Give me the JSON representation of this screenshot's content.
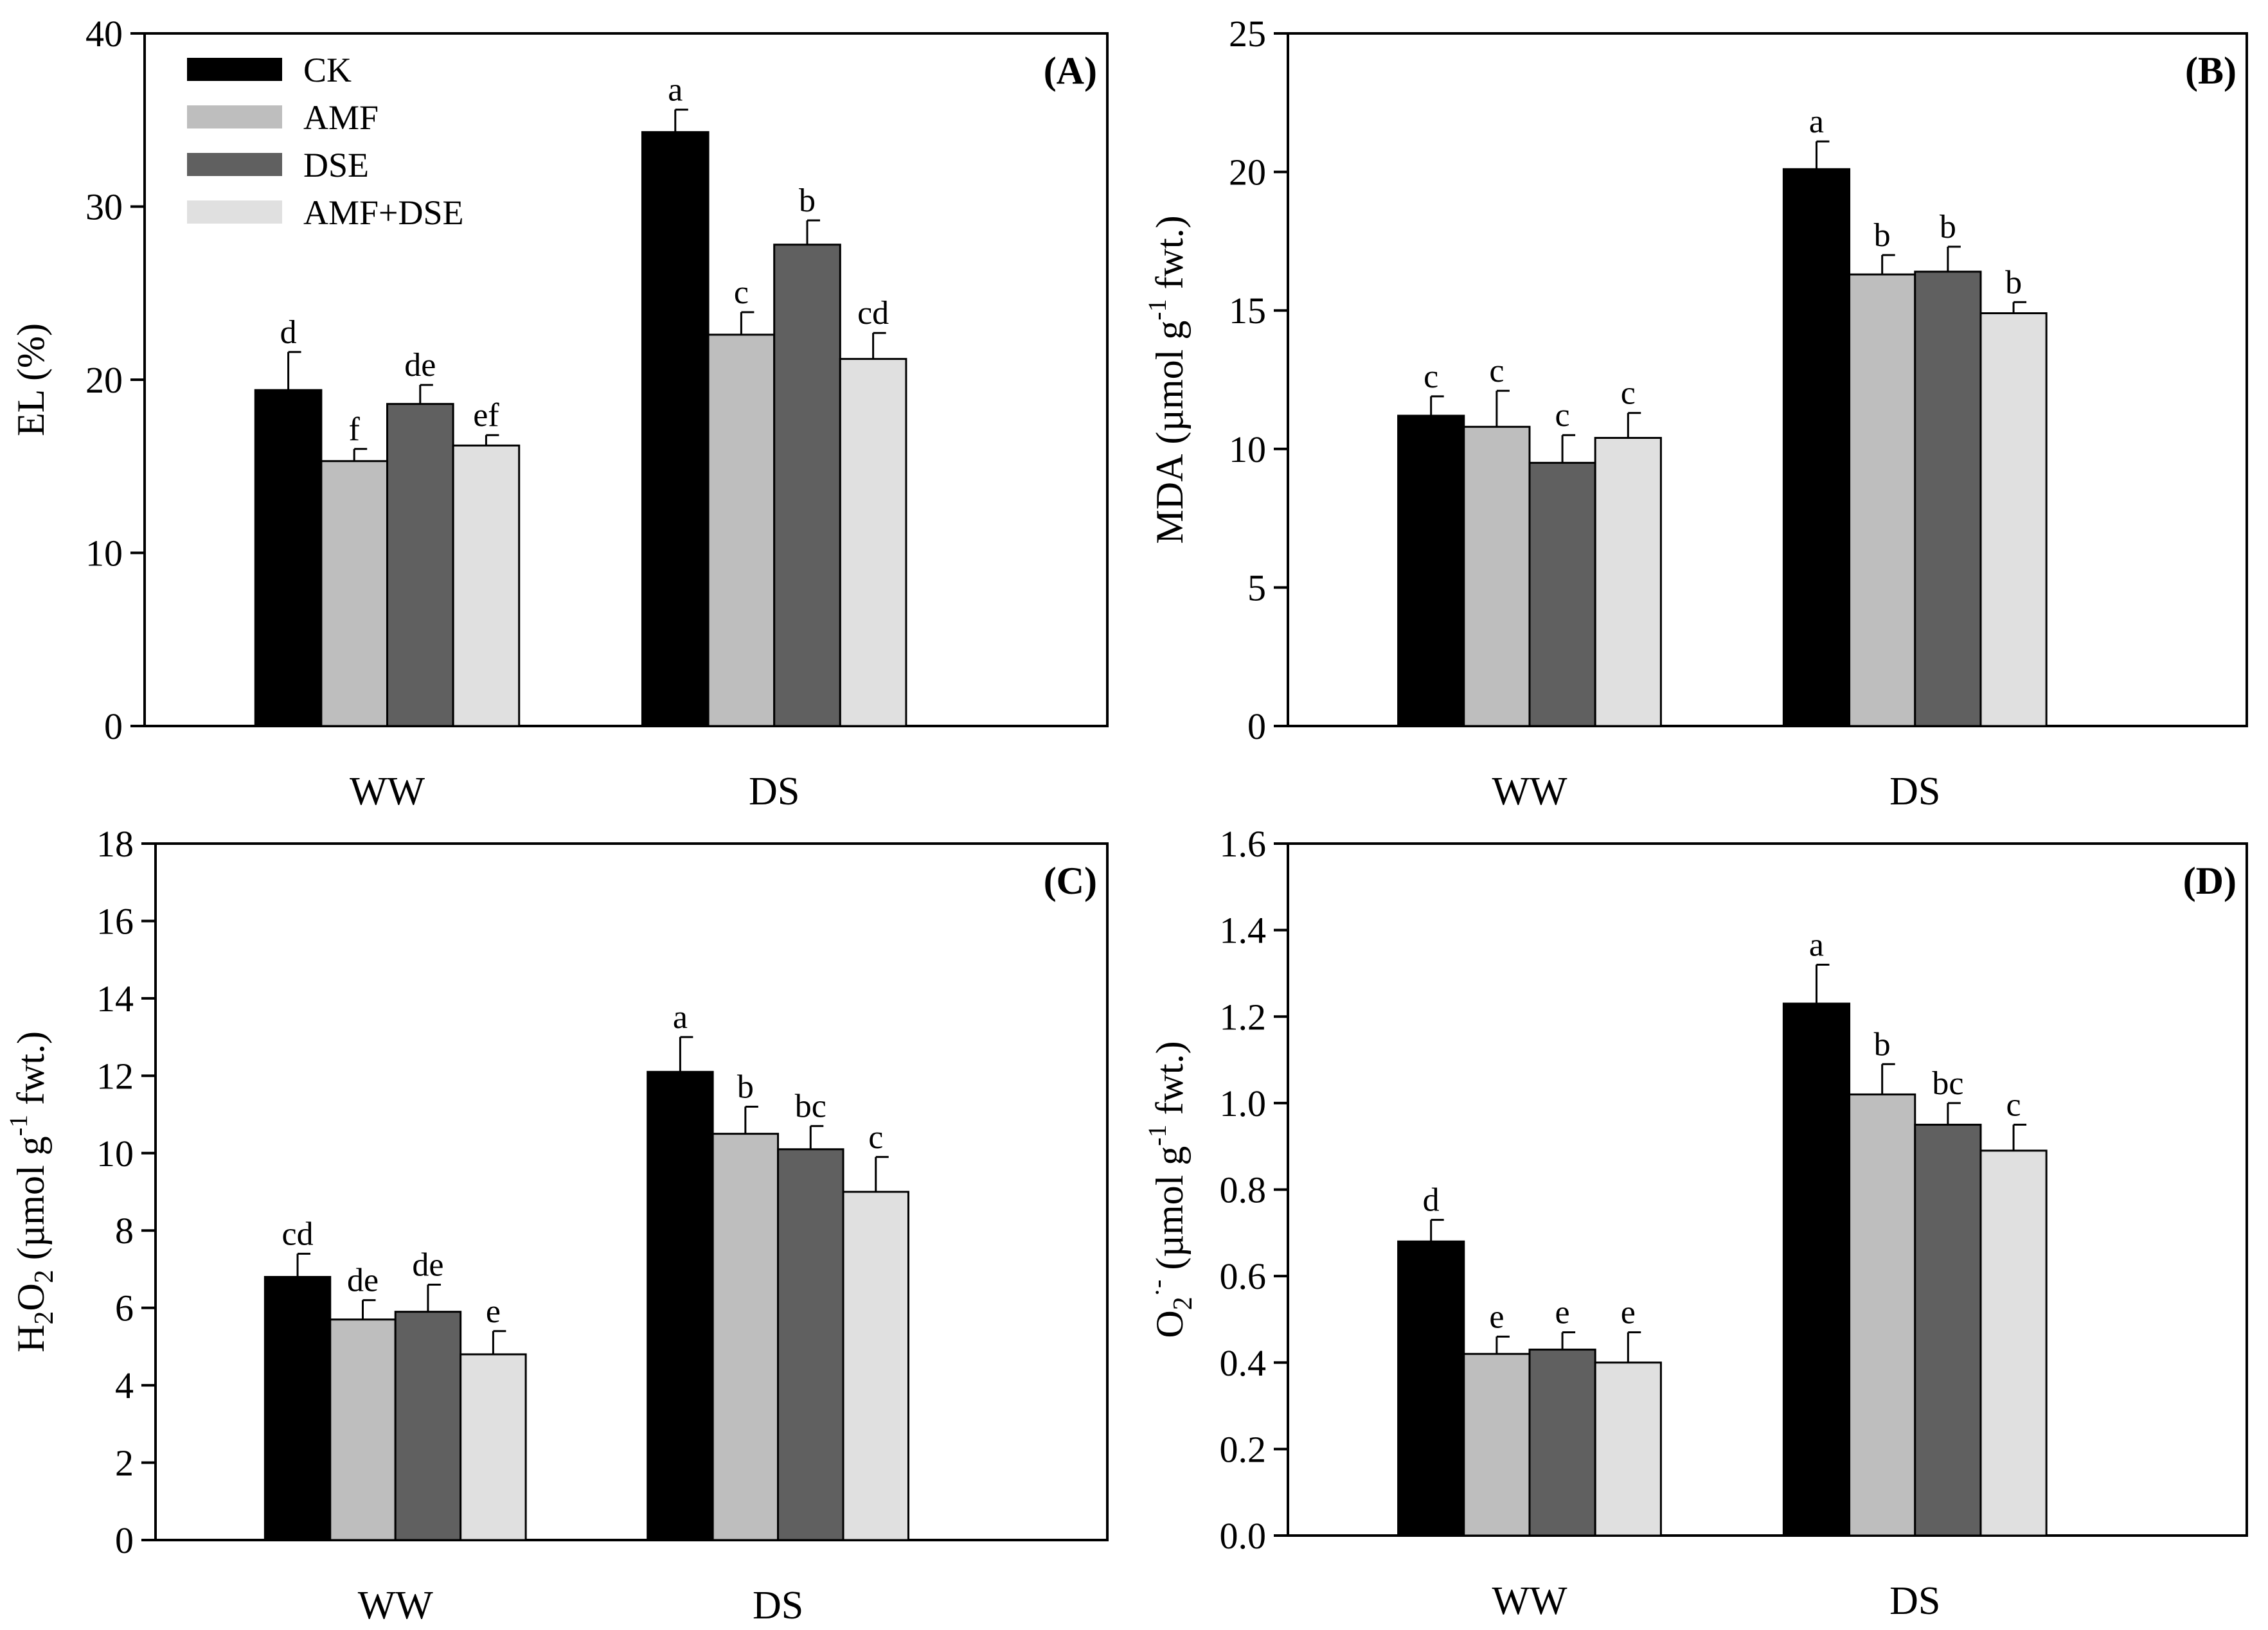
{
  "colors": {
    "CK": "#000000",
    "AMF": "#bebebe",
    "DSE": "#606060",
    "AMF+DSE": "#e0e0e0"
  },
  "legend": [
    "CK",
    "AMF",
    "DSE",
    "AMF+DSE"
  ],
  "chart_data": [
    {
      "type": "bar",
      "panel": "(A)",
      "categories": [
        "WW",
        "DS"
      ],
      "ylim": [
        0,
        40
      ],
      "yticks": [
        "0",
        "10",
        "20",
        "30",
        "40"
      ],
      "ylabel": {
        "text": "EL (%)"
      },
      "series": [
        {
          "name": "CK",
          "values": [
            19.4,
            34.3
          ],
          "errors": [
            2.2,
            1.3
          ],
          "letters": [
            "d",
            "a"
          ]
        },
        {
          "name": "AMF",
          "values": [
            15.3,
            22.6
          ],
          "errors": [
            0.7,
            1.3
          ],
          "letters": [
            "f",
            "c"
          ]
        },
        {
          "name": "DSE",
          "values": [
            18.6,
            27.8
          ],
          "errors": [
            1.1,
            1.4
          ],
          "letters": [
            "de",
            "b"
          ]
        },
        {
          "name": "AMF+DSE",
          "values": [
            16.2,
            21.2
          ],
          "errors": [
            0.6,
            1.5
          ],
          "letters": [
            "ef",
            "cd"
          ]
        }
      ]
    },
    {
      "type": "bar",
      "panel": "(B)",
      "categories": [
        "WW",
        "DS"
      ],
      "ylim": [
        0,
        25
      ],
      "yticks": [
        "0",
        "5",
        "10",
        "15",
        "20",
        "25"
      ],
      "ylabel": {
        "main": "MDA",
        "pre": "(µmol g",
        "sup": "-1",
        "post": " fwt.)"
      },
      "series": [
        {
          "name": "CK",
          "values": [
            11.2,
            20.1
          ],
          "errors": [
            0.7,
            1.0
          ],
          "letters": [
            "c",
            "a"
          ]
        },
        {
          "name": "AMF",
          "values": [
            10.8,
            16.3
          ],
          "errors": [
            1.3,
            0.7
          ],
          "letters": [
            "c",
            "b"
          ]
        },
        {
          "name": "DSE",
          "values": [
            9.5,
            16.4
          ],
          "errors": [
            1.0,
            0.9
          ],
          "letters": [
            "c",
            "b"
          ]
        },
        {
          "name": "AMF+DSE",
          "values": [
            10.4,
            14.9
          ],
          "errors": [
            0.9,
            0.4
          ],
          "letters": [
            "c",
            "b"
          ]
        }
      ]
    },
    {
      "type": "bar",
      "panel": "(C)",
      "categories": [
        "WW",
        "DS"
      ],
      "ylim": [
        0,
        18
      ],
      "yticks": [
        "0",
        "2",
        "4",
        "6",
        "8",
        "10",
        "12",
        "14",
        "16",
        "18"
      ],
      "ylabel": {
        "main": "H",
        "sub1": "2",
        "main2": "O",
        "sub2": "2",
        "pre": "(µmol g",
        "sup": "-1",
        "post": " fwt.)"
      },
      "series": [
        {
          "name": "CK",
          "values": [
            6.8,
            12.1
          ],
          "errors": [
            0.6,
            0.9
          ],
          "letters": [
            "cd",
            "a"
          ]
        },
        {
          "name": "AMF",
          "values": [
            5.7,
            10.5
          ],
          "errors": [
            0.5,
            0.7
          ],
          "letters": [
            "de",
            "b"
          ]
        },
        {
          "name": "DSE",
          "values": [
            5.9,
            10.1
          ],
          "errors": [
            0.7,
            0.6
          ],
          "letters": [
            "de",
            "bc"
          ]
        },
        {
          "name": "AMF+DSE",
          "values": [
            4.8,
            9.0
          ],
          "errors": [
            0.6,
            0.9
          ],
          "letters": [
            "e",
            "c"
          ]
        }
      ]
    },
    {
      "type": "bar",
      "panel": "(D)",
      "categories": [
        "WW",
        "DS"
      ],
      "ylim": [
        0.0,
        1.6
      ],
      "yticks": [
        "0.0",
        "0.2",
        "0.4",
        "0.6",
        "0.8",
        "1.0",
        "1.2",
        "1.4",
        "1.6"
      ],
      "ylabel": {
        "main": "O",
        "sub1": "2",
        "sup1": "·-",
        "pre": "(µmol g",
        "sup": "-1",
        "post": " fwt.)"
      },
      "series": [
        {
          "name": "CK",
          "values": [
            0.68,
            1.23
          ],
          "errors": [
            0.05,
            0.09
          ],
          "letters": [
            "d",
            "a"
          ]
        },
        {
          "name": "AMF",
          "values": [
            0.42,
            1.02
          ],
          "errors": [
            0.04,
            0.07
          ],
          "letters": [
            "e",
            "b"
          ]
        },
        {
          "name": "DSE",
          "values": [
            0.43,
            0.95
          ],
          "errors": [
            0.04,
            0.05
          ],
          "letters": [
            "e",
            "bc"
          ]
        },
        {
          "name": "AMF+DSE",
          "values": [
            0.4,
            0.89
          ],
          "errors": [
            0.07,
            0.06
          ],
          "letters": [
            "e",
            "c"
          ]
        }
      ]
    }
  ]
}
